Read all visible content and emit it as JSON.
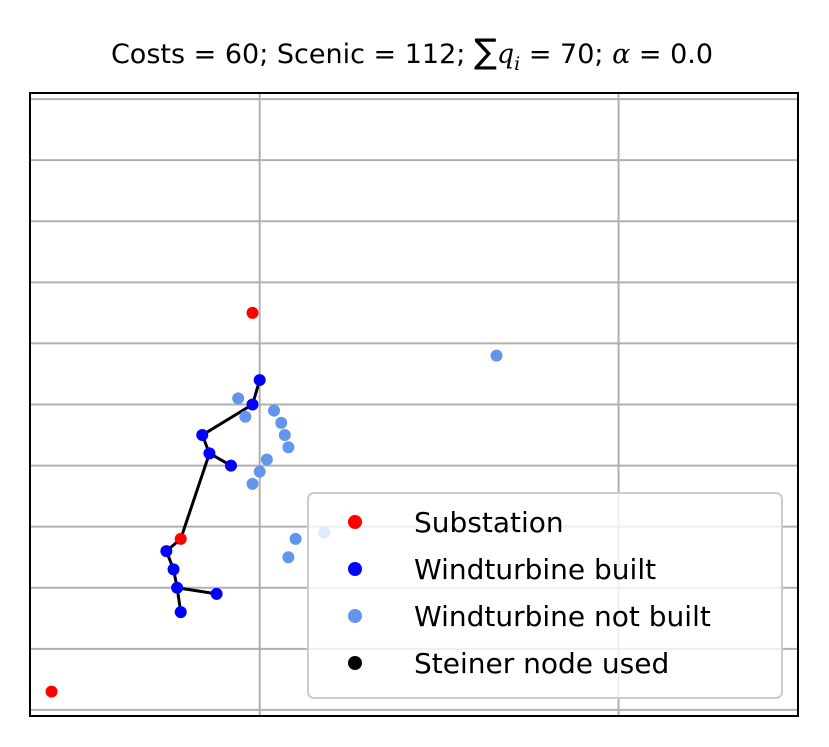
{
  "chart_data": {
    "type": "scatter",
    "title": {
      "prefix": "Costs = 60; Scenic = 112; ",
      "sum_symbol": "∑",
      "sum_var": "q",
      "sum_sub": "i",
      "middle": " = 70; ",
      "alpha_symbol": "α",
      "suffix": " = 0.0"
    },
    "xlabel": "",
    "ylabel": "",
    "xlim": [
      0,
      10.7
    ],
    "ylim": [
      0,
      10.2
    ],
    "grid": true,
    "grid_x": [
      3.2,
      8.2,
      13.2,
      18.2
    ],
    "grid_y": [
      0.1,
      1.1,
      2.1,
      3.1,
      4.1,
      5.1,
      6.1,
      7.1,
      8.1,
      9.1,
      10.1
    ],
    "colors": {
      "substation": "#ff0000",
      "built": "#0000ff",
      "not_built": "#6495ed",
      "steiner": "#000000",
      "edge": "#000000",
      "grid": "#b0b0b0",
      "frame": "#000000"
    },
    "series": [
      {
        "name": "Substation",
        "color": "#ff0000",
        "points": [
          [
            3.1,
            6.6
          ],
          [
            0.3,
            0.4
          ],
          [
            2.1,
            2.9
          ]
        ]
      },
      {
        "name": "Windturbine built",
        "color": "#0000ff",
        "points": [
          [
            3.2,
            5.5
          ],
          [
            3.1,
            5.1
          ],
          [
            2.4,
            4.6
          ],
          [
            2.5,
            4.3
          ],
          [
            2.8,
            4.1
          ],
          [
            1.9,
            2.7
          ],
          [
            2.0,
            2.4
          ],
          [
            2.05,
            2.1
          ],
          [
            2.1,
            1.7
          ],
          [
            2.6,
            2.0
          ]
        ]
      },
      {
        "name": "Windturbine not built",
        "color": "#6495ed",
        "points": [
          [
            6.5,
            5.9
          ],
          [
            2.9,
            5.2
          ],
          [
            3.0,
            4.9
          ],
          [
            3.4,
            5.0
          ],
          [
            3.5,
            4.8
          ],
          [
            3.55,
            4.6
          ],
          [
            3.6,
            4.4
          ],
          [
            3.3,
            4.2
          ],
          [
            3.2,
            4.0
          ],
          [
            3.1,
            3.8
          ],
          [
            4.1,
            3.0
          ],
          [
            3.7,
            2.9
          ],
          [
            3.6,
            2.6
          ]
        ]
      },
      {
        "name": "Steiner node used",
        "color": "#000000",
        "points": []
      }
    ],
    "edges": [
      [
        [
          3.2,
          5.5
        ],
        [
          3.1,
          5.1
        ]
      ],
      [
        [
          3.1,
          5.1
        ],
        [
          2.4,
          4.6
        ]
      ],
      [
        [
          2.4,
          4.6
        ],
        [
          2.5,
          4.3
        ]
      ],
      [
        [
          2.5,
          4.3
        ],
        [
          2.8,
          4.1
        ]
      ],
      [
        [
          2.5,
          4.3
        ],
        [
          2.1,
          2.9
        ]
      ],
      [
        [
          2.1,
          2.9
        ],
        [
          1.9,
          2.7
        ]
      ],
      [
        [
          1.9,
          2.7
        ],
        [
          2.0,
          2.4
        ]
      ],
      [
        [
          2.0,
          2.4
        ],
        [
          2.05,
          2.1
        ]
      ],
      [
        [
          2.05,
          2.1
        ],
        [
          2.1,
          1.7
        ]
      ],
      [
        [
          2.05,
          2.1
        ],
        [
          2.6,
          2.0
        ]
      ]
    ],
    "legend": {
      "position": "lower right",
      "entries": [
        "Substation",
        "Windturbine built",
        "Windturbine not built",
        "Steiner node used"
      ]
    }
  }
}
